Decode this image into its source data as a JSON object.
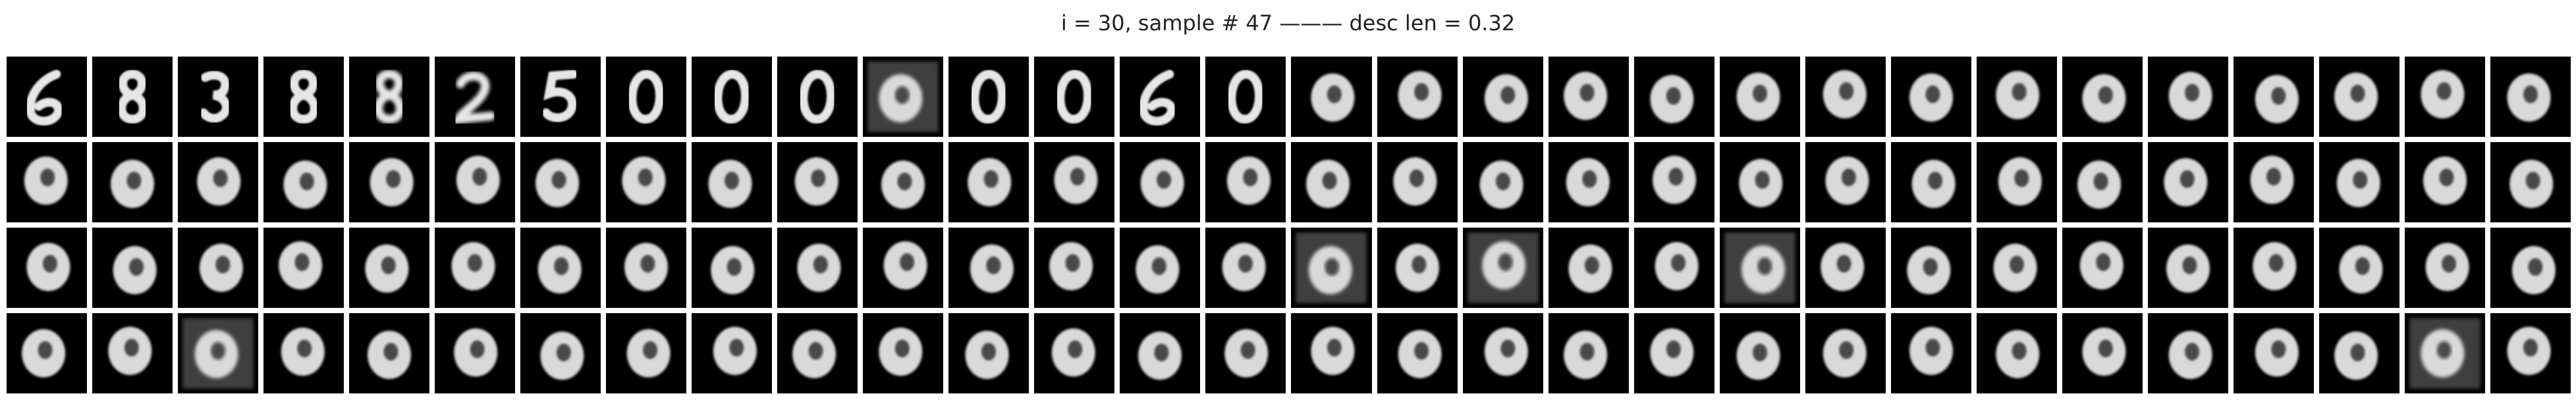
{
  "title": "i = 30, sample # 47 ——— desc len = 0.32",
  "grid": {
    "rows": 4,
    "cols": 30,
    "cells": [
      [
        "digit-6",
        "digit-8",
        "digit-3",
        "digit-8",
        "digit-8-blurry",
        "digit-2-blurry",
        "digit-5",
        "digit-0",
        "digit-0",
        "digit-0",
        "noisy-blob",
        "digit-0",
        "digit-0",
        "digit-6",
        "digit-0",
        "blob",
        "blob",
        "blob",
        "blob",
        "blob",
        "blob",
        "blob",
        "blob",
        "blob",
        "blob",
        "blob",
        "blob",
        "blob",
        "blob",
        "blob"
      ],
      [
        "blob",
        "blob",
        "blob",
        "blob",
        "blob",
        "blob",
        "blob",
        "blob",
        "blob",
        "blob",
        "blob",
        "blob",
        "blob",
        "blob",
        "blob",
        "blob",
        "blob",
        "blob",
        "blob",
        "blob",
        "blob",
        "blob",
        "blob",
        "blob",
        "blob",
        "blob",
        "blob",
        "blob",
        "blob",
        "blob"
      ],
      [
        "blob",
        "blob",
        "blob",
        "blob",
        "blob",
        "blob",
        "blob",
        "blob",
        "blob",
        "blob",
        "blob",
        "blob",
        "blob",
        "blob",
        "blob",
        "noisy-blob",
        "blob",
        "noisy-blob",
        "blob",
        "blob",
        "noisy-blob",
        "blob",
        "blob",
        "blob",
        "blob",
        "blob",
        "blob",
        "blob",
        "blob",
        "blob"
      ],
      [
        "blob",
        "blob",
        "noisy-blob",
        "blob",
        "blob",
        "blob",
        "blob",
        "blob",
        "blob",
        "blob",
        "blob",
        "blob",
        "blob",
        "blob",
        "blob",
        "blob",
        "blob",
        "blob",
        "blob",
        "blob",
        "blob",
        "blob",
        "blob",
        "blob",
        "blob",
        "blob",
        "blob",
        "blob",
        "noisy-blob",
        "blob"
      ]
    ]
  },
  "colors": {
    "background": "#ffffff",
    "cell_bg": "#000000",
    "stroke": "#e6e6e6"
  }
}
